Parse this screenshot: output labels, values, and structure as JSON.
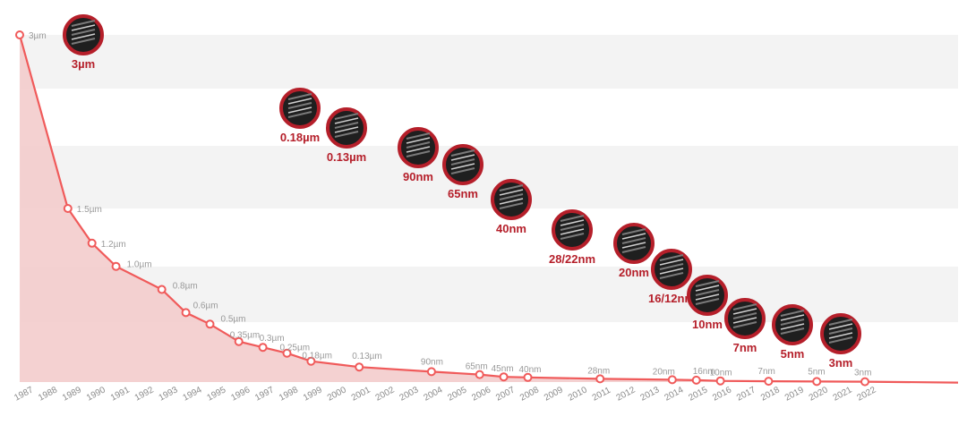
{
  "chart_data": {
    "type": "line",
    "title": "",
    "xlabel": "",
    "ylabel": "",
    "ylim": [
      0,
      3
    ],
    "grid": true,
    "categories": [
      "1987",
      "1988",
      "1989",
      "1990",
      "1991",
      "1992",
      "1993",
      "1994",
      "1995",
      "1996",
      "1997",
      "1998",
      "1999",
      "2000",
      "2001",
      "2002",
      "2003",
      "2004",
      "2005",
      "2006",
      "2007",
      "2008",
      "2009",
      "2010",
      "2011",
      "2012",
      "2013",
      "2014",
      "2015",
      "2016",
      "2017",
      "2018",
      "2019",
      "2020",
      "2021",
      "2022"
    ],
    "points": [
      {
        "year": 1987,
        "value": 3,
        "label": "3µm"
      },
      {
        "year": 1989,
        "value": 1.5,
        "label": "1.5µm"
      },
      {
        "year": 1990,
        "value": 1.2,
        "label": "1.2µm"
      },
      {
        "year": 1991,
        "value": 1.0,
        "label": "1.0µm"
      },
      {
        "year": 1992.9,
        "value": 0.8,
        "label": "0.8µm"
      },
      {
        "year": 1993.9,
        "value": 0.6,
        "label": "0.6µm"
      },
      {
        "year": 1994.9,
        "value": 0.5,
        "label": "0.5µm"
      },
      {
        "year": 1996.1,
        "value": 0.35,
        "label": "0.35µm"
      },
      {
        "year": 1997.1,
        "value": 0.3,
        "label": "0.3µm"
      },
      {
        "year": 1998.1,
        "value": 0.25,
        "label": "0.25µm"
      },
      {
        "year": 1999.1,
        "value": 0.18,
        "label": "0.18µm"
      },
      {
        "year": 2001.1,
        "value": 0.13,
        "label": "0.13µm"
      },
      {
        "year": 2004.1,
        "value": 0.09,
        "label": "90nm"
      },
      {
        "year": 2006.1,
        "value": 0.065,
        "label": "65nm"
      },
      {
        "year": 2007.1,
        "value": 0.045,
        "label": "45nm"
      },
      {
        "year": 2008.1,
        "value": 0.04,
        "label": "40nm"
      },
      {
        "year": 2011.1,
        "value": 0.028,
        "label": "28nm"
      },
      {
        "year": 2014.1,
        "value": 0.02,
        "label": "20nm"
      },
      {
        "year": 2015.1,
        "value": 0.016,
        "label": "16nm"
      },
      {
        "year": 2016.1,
        "value": 0.01,
        "label": "10nm"
      },
      {
        "year": 2018.1,
        "value": 0.007,
        "label": "7nm"
      },
      {
        "year": 2020.1,
        "value": 0.005,
        "label": "5nm"
      },
      {
        "year": 2022.1,
        "value": 0.003,
        "label": "3nm"
      }
    ],
    "nodes": [
      "3µm",
      "0.18µm",
      "0.13µm",
      "90nm",
      "65nm",
      "40nm",
      "28/22nm",
      "20nm",
      "16/12nm",
      "10nm",
      "7nm",
      "5nm",
      "3nm"
    ]
  }
}
